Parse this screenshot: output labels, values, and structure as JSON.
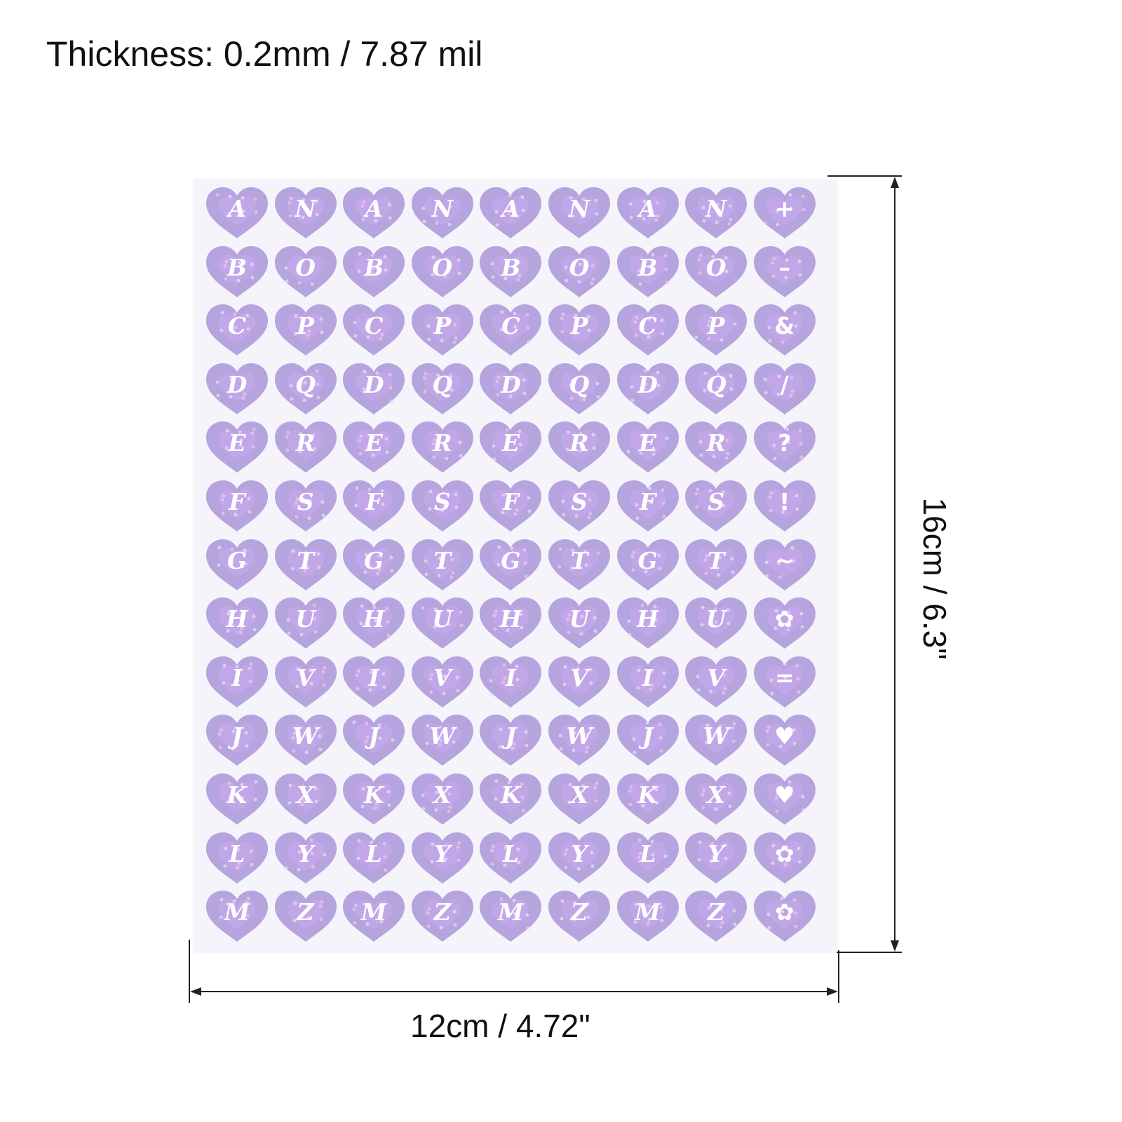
{
  "header": {
    "thickness_text": "Thickness: 0.2mm / 7.87 mil"
  },
  "dimensions": {
    "width_label": "12cm / 4.72\"",
    "height_label": "16cm / 6.3\""
  },
  "sheet": {
    "sticker_color": "#b6a4de",
    "inner_heart_color": "#c6a7ea",
    "glyph_color": "#ffffff",
    "rows": [
      [
        "A",
        "N",
        "A",
        "N",
        "A",
        "N",
        "A",
        "N",
        "+"
      ],
      [
        "B",
        "O",
        "B",
        "O",
        "B",
        "O",
        "B",
        "O",
        "–"
      ],
      [
        "C",
        "P",
        "C",
        "P",
        "C",
        "P",
        "C",
        "P",
        "&"
      ],
      [
        "D",
        "Q",
        "D",
        "Q",
        "D",
        "Q",
        "D",
        "Q",
        "/"
      ],
      [
        "E",
        "R",
        "E",
        "R",
        "E",
        "R",
        "E",
        "R",
        "?"
      ],
      [
        "F",
        "S",
        "F",
        "S",
        "F",
        "S",
        "F",
        "S",
        "!"
      ],
      [
        "G",
        "T",
        "G",
        "T",
        "G",
        "T",
        "G",
        "T",
        "~"
      ],
      [
        "H",
        "U",
        "H",
        "U",
        "H",
        "U",
        "H",
        "U",
        "✿"
      ],
      [
        "I",
        "V",
        "I",
        "V",
        "I",
        "V",
        "I",
        "V",
        "="
      ],
      [
        "J",
        "W",
        "J",
        "W",
        "J",
        "W",
        "J",
        "W",
        "♥"
      ],
      [
        "K",
        "X",
        "K",
        "X",
        "K",
        "X",
        "K",
        "X",
        "♥"
      ],
      [
        "L",
        "Y",
        "L",
        "Y",
        "L",
        "Y",
        "L",
        "Y",
        "✿"
      ],
      [
        "M",
        "Z",
        "M",
        "Z",
        "M",
        "Z",
        "M",
        "Z",
        "✿"
      ]
    ]
  }
}
